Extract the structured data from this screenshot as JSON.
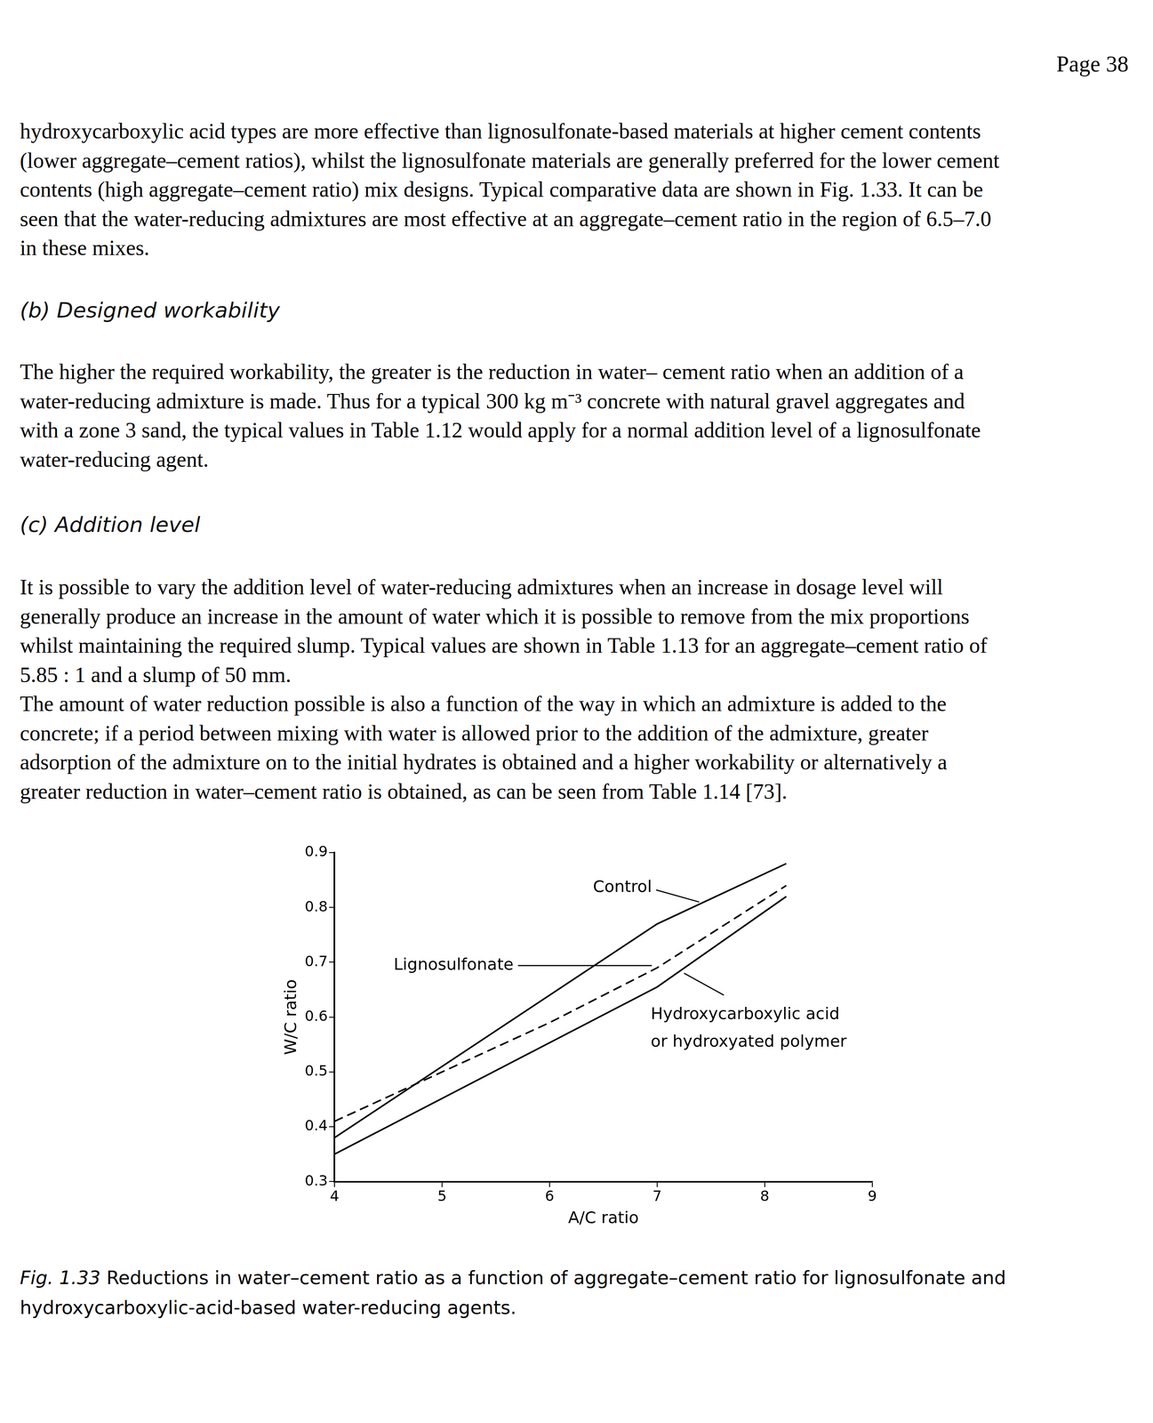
{
  "page_number": "Page 38",
  "body": [
    {
      "kind": "paragraph",
      "lines": [
        "hydroxycarboxylic acid types are more effective than lignosulfonate-based materials at higher cement contents",
        "(lower aggregate–cement ratios), whilst the lignosulfonate materials are generally preferred for the lower cement",
        "contents (high aggregate–cement ratio) mix designs. Typical comparative data are shown in Fig. 1.33. It can be",
        "seen that the water-reducing admixtures are most effective at an aggregate–cement ratio in the region of 6.5–7.0",
        "in these mixes."
      ]
    },
    {
      "kind": "heading",
      "text": "(b) Designed workability"
    },
    {
      "kind": "paragraph",
      "lines": [
        "The higher the required workability, the greater is the reduction in water– cement ratio when an addition of a",
        "water-reducing admixture is made. Thus for a typical 300 kg m⁻³ concrete with natural gravel aggregates and",
        "with a zone 3 sand, the typical values in Table 1.12 would apply for a normal addition level of a lignosulfonate",
        "water-reducing agent."
      ]
    },
    {
      "kind": "heading",
      "text": "(c) Addition level"
    },
    {
      "kind": "paragraph",
      "lines": [
        "It is possible to vary the addition level of water-reducing admixtures when an increase in dosage level will",
        "generally produce an increase in the amount of water which it is possible to remove from the mix proportions",
        "whilst maintaining the required slump. Typical values are shown in Table 1.13 for an aggregate–cement ratio of",
        "5.85 : 1 and a slump of 50 mm.",
        "The amount of water reduction possible is also a function of the way in which an admixture is added to the",
        "concrete; if a period between mixing with water is allowed prior to the addition of the admixture, greater",
        "adsorption of the admixture on to the initial hydrates is obtained and a higher workability or alternatively a",
        "greater reduction in water–cement ratio is obtained, as can be seen from Table 1.14 [73]."
      ]
    }
  ],
  "chart_data": {
    "type": "line",
    "x_label": "A/C ratio",
    "y_label": "W/C ratio",
    "xlim": [
      4,
      9
    ],
    "xticks": [
      4,
      5,
      6,
      7,
      8,
      9
    ],
    "ylim": [
      0.3,
      0.9
    ],
    "yticks": [
      0.3,
      0.4,
      0.5,
      0.6,
      0.7,
      0.8,
      0.9
    ],
    "grid": false,
    "series": [
      {
        "name": "Control",
        "color": "#000000",
        "line_style": "solid",
        "x": [
          4,
          7,
          8.2
        ],
        "values": [
          0.38,
          0.77,
          0.88
        ]
      },
      {
        "name": "Lignosulfonate",
        "color": "#000000",
        "line_style": "dashed",
        "x": [
          4,
          5,
          6,
          7,
          8.2
        ],
        "values": [
          0.41,
          0.5,
          0.59,
          0.69,
          0.84
        ]
      },
      {
        "name": "Hydroxycarboxylic acid\nor hydroxyated polymer",
        "color": "#000000",
        "line_style": "solid",
        "x": [
          4,
          7,
          8.2
        ],
        "values": [
          0.35,
          0.655,
          0.82
        ]
      }
    ]
  },
  "caption": {
    "label": "Fig. 1.33",
    "lines": [
      "Reductions in water–cement ratio as a function of aggregate–cement ratio for lignosulfonate and",
      "hydroxycarboxylic-acid-based water-reducing agents."
    ]
  }
}
